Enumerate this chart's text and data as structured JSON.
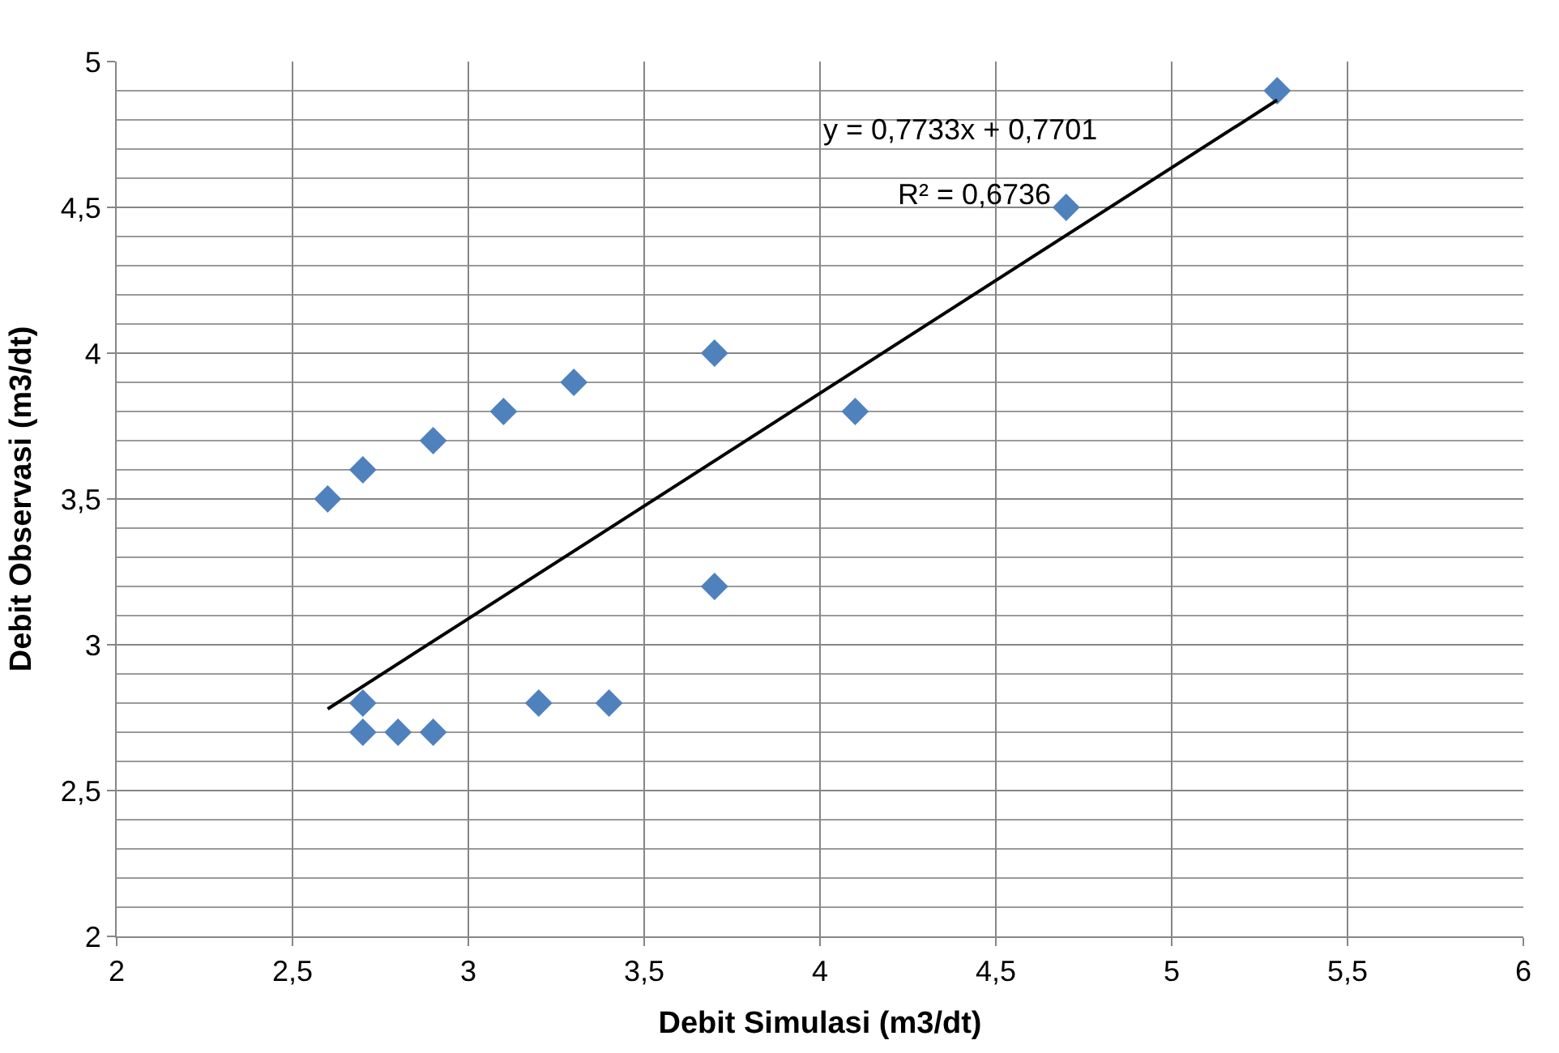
{
  "chart_data": {
    "type": "scatter",
    "xlabel": "Debit Simulasi (m3/dt)",
    "ylabel": "Debit Observasi (m3/dt)",
    "series": [
      {
        "color": "#4f81bd",
        "marker": "diamond",
        "x": [
          2.6,
          2.7,
          2.9,
          3.1,
          3.3,
          3.7,
          4.1,
          3.7,
          2.7,
          2.7,
          2.8,
          2.9,
          3.2,
          3.4,
          4.7,
          5.3
        ],
        "values": [
          3.5,
          3.6,
          3.7,
          3.8,
          3.9,
          4.0,
          3.8,
          3.2,
          2.8,
          2.7,
          2.7,
          2.7,
          2.8,
          2.8,
          4.5,
          4.9
        ]
      },
      {
        "type": "line",
        "color": "#000000",
        "marker": "none",
        "x": [
          2.6,
          5.3
        ],
        "values": [
          2.78,
          4.868
        ]
      }
    ],
    "annotations": [
      "y = 0,7733x + 0,7701",
      "R² = 0,6736"
    ],
    "xlim": [
      2,
      6
    ],
    "ylim": [
      2,
      5
    ],
    "xticks": [
      2,
      {
        "value": 2.5,
        "label": "2,5"
      },
      3,
      {
        "value": 3.5,
        "label": "3,5"
      },
      4,
      {
        "value": 4.5,
        "label": "4,5"
      },
      5,
      {
        "value": 5.5,
        "label": "5,5"
      },
      6
    ],
    "yticks": [
      2,
      {
        "value": 2.5,
        "label": "2,5"
      },
      3,
      {
        "value": 3.5,
        "label": "3,5"
      },
      4,
      {
        "value": 4.5,
        "label": "4,5"
      },
      5
    ],
    "grid": true
  }
}
